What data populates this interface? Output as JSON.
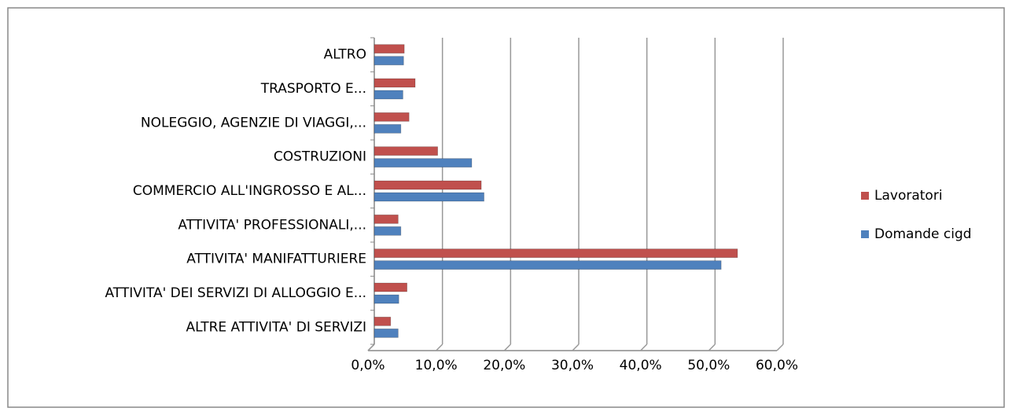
{
  "chart_data": {
    "type": "bar",
    "orientation": "horizontal",
    "categories": [
      "ALTRE ATTIVITA' DI SERVIZI",
      "ATTIVITA' DEI SERVIZI DI ALLOGGIO E...",
      "ATTIVITA' MANIFATTURIERE",
      "ATTIVITA' PROFESSIONALI,...",
      "COMMERCIO ALL'INGROSSO E AL...",
      "COSTRUZIONI",
      "NOLEGGIO, AGENZIE DI VIAGGI,...",
      "TRASPORTO E...",
      "ALTRO"
    ],
    "series": [
      {
        "name": "Domande cigd",
        "color": "#4f81bd",
        "values": [
          3.5,
          3.6,
          50.9,
          3.9,
          16.1,
          14.3,
          3.9,
          4.2,
          4.3
        ]
      },
      {
        "name": "Lavoratori",
        "color": "#c0504d",
        "values": [
          2.4,
          4.8,
          53.3,
          3.5,
          15.7,
          9.3,
          5.1,
          6.0,
          4.4
        ]
      }
    ],
    "xlim": [
      0,
      60
    ],
    "xticks": [
      {
        "value": 0,
        "label": "0,0%"
      },
      {
        "value": 10,
        "label": "10,0%"
      },
      {
        "value": 20,
        "label": "20,0%"
      },
      {
        "value": 30,
        "label": "30,0%"
      },
      {
        "value": 40,
        "label": "40,0%"
      },
      {
        "value": 50,
        "label": "50,0%"
      },
      {
        "value": 60,
        "label": "60,0%"
      }
    ],
    "grid": true,
    "legend": "right"
  }
}
